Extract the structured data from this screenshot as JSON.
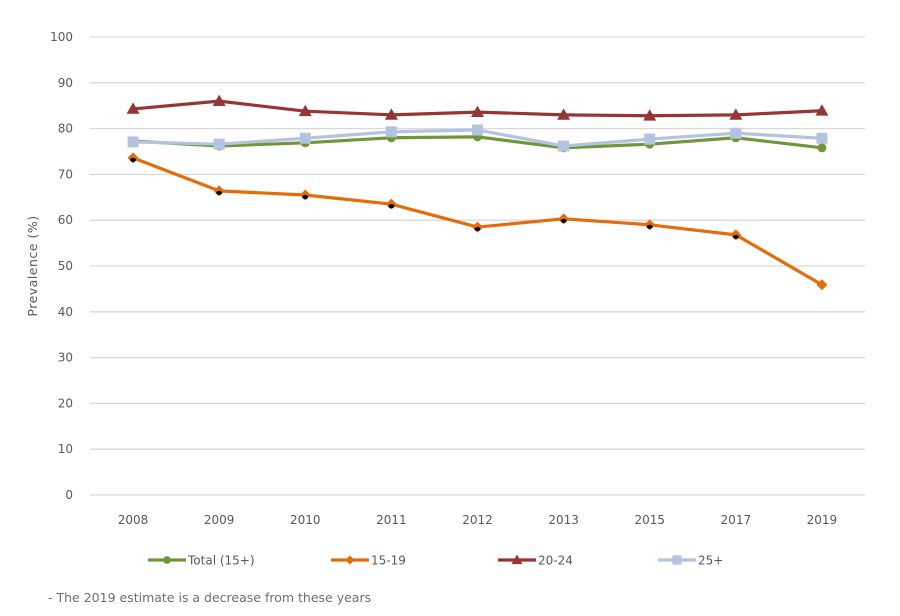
{
  "chart_data": {
    "type": "line",
    "title": "",
    "xlabel": "",
    "ylabel": "Prevalence (%)",
    "ylim": [
      0,
      100
    ],
    "yticks": [
      0,
      10,
      20,
      30,
      40,
      50,
      60,
      70,
      80,
      90,
      100
    ],
    "grid": true,
    "legend_position": "bottom",
    "categories": [
      "2008",
      "2009",
      "2010",
      "2011",
      "2012",
      "2013",
      "2015",
      "2017",
      "2019"
    ],
    "series": [
      {
        "name": "Total (15+)",
        "color": "#70963a",
        "marker": "circle",
        "values": [
          77.3,
          76.2,
          76.9,
          78.0,
          78.2,
          75.8,
          76.6,
          78.0,
          75.8
        ]
      },
      {
        "name": "15-19",
        "color": "#e46c0a",
        "marker": "diamond",
        "values": [
          73.6,
          66.4,
          65.5,
          63.5,
          58.5,
          60.3,
          59.0,
          56.8,
          45.9
        ]
      },
      {
        "name": "20-24",
        "color": "#963634",
        "marker": "triangle",
        "values": [
          84.3,
          86.0,
          83.8,
          83.0,
          83.6,
          83.0,
          82.8,
          83.0,
          83.9
        ]
      },
      {
        "name": "25+",
        "color": "#b4c4e0",
        "marker": "square",
        "values": [
          77.1,
          76.6,
          77.9,
          79.3,
          79.7,
          76.2,
          77.7,
          79.0,
          77.9
        ]
      }
    ],
    "annotation": "- The 2019 estimate is a decrease from these years",
    "annotation_marked_series": "15-19",
    "annotation_marked_points": [
      "2008",
      "2009",
      "2010",
      "2011",
      "2012",
      "2013",
      "2015",
      "2017"
    ]
  }
}
